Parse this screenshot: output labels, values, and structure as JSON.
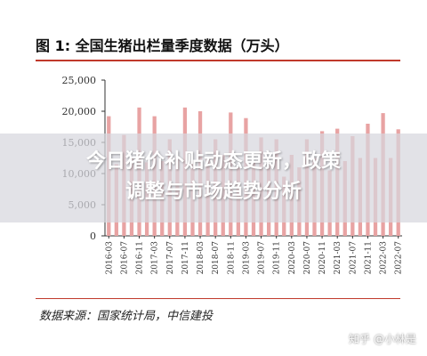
{
  "figure": {
    "title": "图 1: 全国生猪出栏量季度数据（万头）",
    "source": "数据来源：国家统计局，中信建投"
  },
  "overlay": {
    "headline_line1": "今日猪价补贴动态更新，政策",
    "headline_line2": "调整与市场趋势分析",
    "watermark": "知乎 @小林是"
  },
  "colors": {
    "bar": "#e8a3a3",
    "accent_rule": "#c0392b",
    "axis": "#333333"
  },
  "chart_data": {
    "type": "bar",
    "title": "图 1: 全国生猪出栏量季度数据（万头）",
    "xlabel": "",
    "ylabel": "",
    "ylim": [
      0,
      25000
    ],
    "yticks": [
      0,
      5000,
      10000,
      15000,
      20000,
      25000
    ],
    "ytick_labels": [
      "0",
      "5,000",
      "10,000",
      "15,000",
      "20,000",
      "25,000"
    ],
    "grid": false,
    "categories": [
      "2016-03",
      "2016-05",
      "2016-07",
      "2016-09",
      "2016-11",
      "2017-01",
      "2017-03",
      "2017-05",
      "2017-07",
      "2017-09",
      "2017-11",
      "2018-01",
      "2018-03",
      "2018-05",
      "2018-07",
      "2018-09",
      "2018-11",
      "2019-01",
      "2019-03",
      "2019-05",
      "2019-07",
      "2019-09",
      "2019-11",
      "2020-01",
      "2020-03",
      "2020-05",
      "2020-07",
      "2020-09",
      "2020-11",
      "2021-01",
      "2021-03",
      "2021-05",
      "2021-07",
      "2021-09",
      "2021-11",
      "2022-01",
      "2022-03",
      "2022-05",
      "2022-07"
    ],
    "xtick_labels": [
      "2016-03",
      "2016-07",
      "2016-11",
      "2017-03",
      "2017-07",
      "2017-11",
      "2018-03",
      "2018-07",
      "2018-11",
      "2019-03",
      "2019-07",
      "2019-11",
      "2020-03",
      "2020-07",
      "2020-11",
      "2021-03",
      "2021-07",
      "2021-11",
      "2022-03",
      "2022-07"
    ],
    "values": [
      19200,
      11500,
      16200,
      12500,
      20600,
      11800,
      19200,
      12000,
      15500,
      12800,
      20600,
      12000,
      20000,
      12500,
      15500,
      13000,
      19800,
      11000,
      18900,
      11800,
      15800,
      12000,
      15500,
      9500,
      13000,
      11000,
      15500,
      12500,
      16800,
      10500,
      17200,
      12000,
      16000,
      12500,
      18000,
      12500,
      19700,
      12500,
      17100
    ]
  }
}
